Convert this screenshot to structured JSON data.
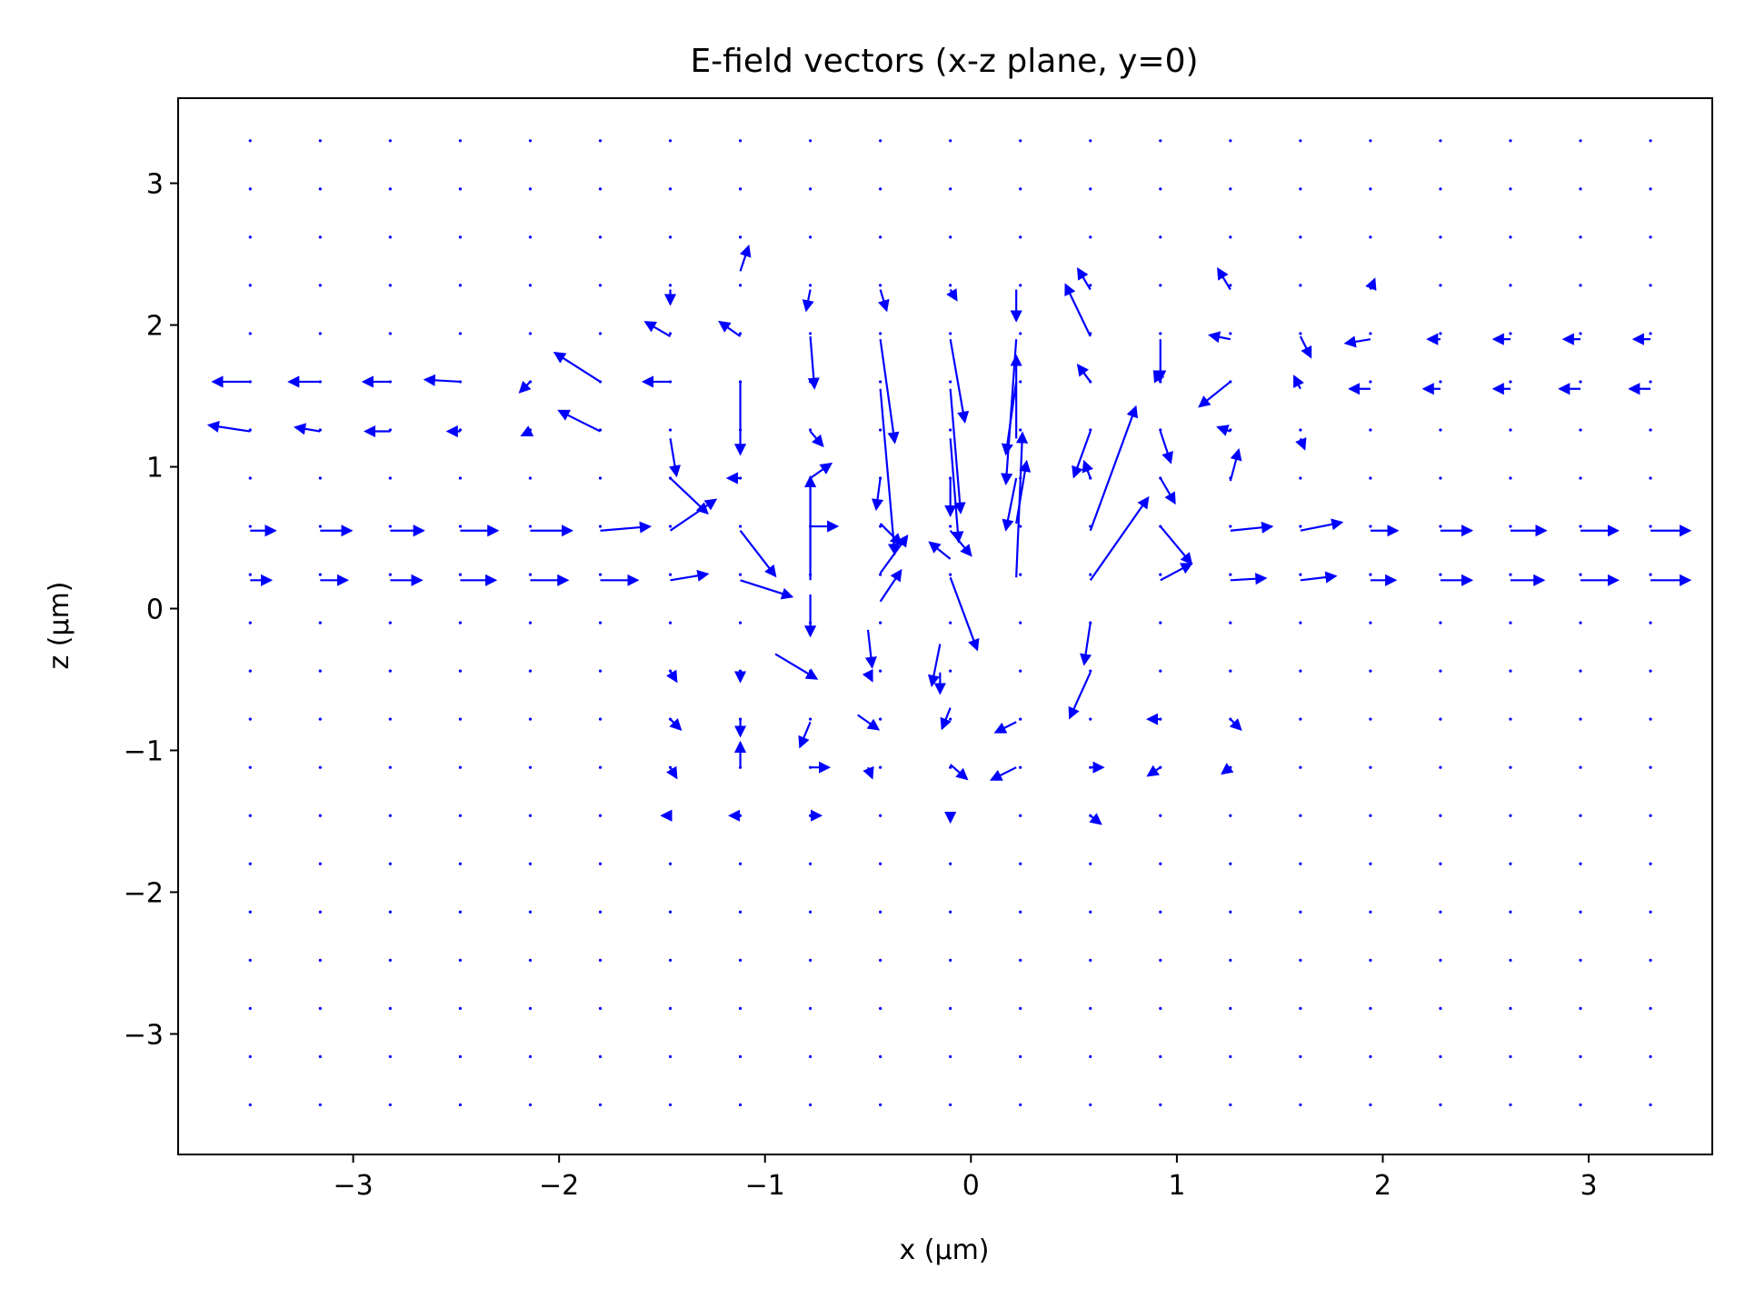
{
  "chart_data": {
    "type": "quiver",
    "title": "E-field vectors (x-z plane, y=0)",
    "xlabel": "x (µm)",
    "ylabel": "z (µm)",
    "xlim": [
      -3.85,
      3.6
    ],
    "ylim": [
      -3.85,
      3.6
    ],
    "xticks": [
      -3,
      -2,
      -1,
      0,
      1,
      2,
      3
    ],
    "yticks": [
      -3,
      -2,
      -1,
      0,
      1,
      2,
      3
    ],
    "xtick_labels": [
      "−3",
      "−2",
      "−1",
      "0",
      "1",
      "2",
      "3"
    ],
    "ytick_labels": [
      "−3",
      "−2",
      "−1",
      "0",
      "1",
      "2",
      "3"
    ],
    "grid": false,
    "legend": "none",
    "color": "#0000ff",
    "grid_x": [
      -3.5,
      -3.16,
      -2.82,
      -2.48,
      -2.14,
      -1.8,
      -1.46,
      -1.12,
      -0.78,
      -0.44,
      -0.1,
      0.24,
      0.58,
      0.92,
      1.26,
      1.6,
      1.94,
      2.28,
      2.62,
      2.96,
      3.3
    ],
    "grid_z": [
      -3.5,
      -3.16,
      -2.82,
      -2.48,
      -2.14,
      -1.8,
      -1.46,
      -1.12,
      -0.78,
      -0.44,
      -0.1,
      0.24,
      0.58,
      0.92,
      1.26,
      1.6,
      1.94,
      2.28,
      2.62,
      2.96,
      3.3
    ],
    "vectors": [
      {
        "x": -3.5,
        "z": 1.6,
        "u": -0.18,
        "v": 0.0
      },
      {
        "x": -3.16,
        "z": 1.6,
        "u": -0.15,
        "v": 0.0
      },
      {
        "x": -2.82,
        "z": 1.6,
        "u": -0.13,
        "v": 0.0
      },
      {
        "x": -2.48,
        "z": 1.6,
        "u": -0.17,
        "v": 0.01
      },
      {
        "x": -2.14,
        "z": 1.6,
        "u": -0.05,
        "v": -0.05
      },
      {
        "x": -1.8,
        "z": 1.6,
        "u": -0.22,
        "v": 0.14
      },
      {
        "x": -1.46,
        "z": 1.6,
        "u": -0.13,
        "v": 0.0
      },
      {
        "x": -3.5,
        "z": 1.25,
        "u": -0.2,
        "v": 0.03
      },
      {
        "x": -3.16,
        "z": 1.25,
        "u": -0.12,
        "v": 0.02
      },
      {
        "x": -2.82,
        "z": 1.25,
        "u": -0.12,
        "v": 0.0
      },
      {
        "x": -2.48,
        "z": 1.25,
        "u": -0.06,
        "v": 0.0
      },
      {
        "x": -2.14,
        "z": 1.25,
        "u": -0.04,
        "v": -0.02
      },
      {
        "x": -1.8,
        "z": 1.25,
        "u": -0.2,
        "v": 0.1
      },
      {
        "x": -3.5,
        "z": 0.55,
        "u": 0.12,
        "v": 0.0
      },
      {
        "x": -3.16,
        "z": 0.55,
        "u": 0.15,
        "v": 0.0
      },
      {
        "x": -2.82,
        "z": 0.55,
        "u": 0.16,
        "v": 0.0
      },
      {
        "x": -2.48,
        "z": 0.55,
        "u": 0.18,
        "v": 0.0
      },
      {
        "x": -2.14,
        "z": 0.55,
        "u": 0.2,
        "v": 0.0
      },
      {
        "x": -1.8,
        "z": 0.55,
        "u": 0.24,
        "v": 0.02
      },
      {
        "x": -1.46,
        "z": 0.55,
        "u": 0.22,
        "v": 0.15
      },
      {
        "x": -3.5,
        "z": 0.2,
        "u": 0.1,
        "v": 0.0
      },
      {
        "x": -3.16,
        "z": 0.2,
        "u": 0.13,
        "v": 0.0
      },
      {
        "x": -2.82,
        "z": 0.2,
        "u": 0.15,
        "v": 0.0
      },
      {
        "x": -2.48,
        "z": 0.2,
        "u": 0.17,
        "v": 0.0
      },
      {
        "x": -2.14,
        "z": 0.2,
        "u": 0.18,
        "v": 0.0
      },
      {
        "x": -1.8,
        "z": 0.2,
        "u": 0.18,
        "v": 0.0
      },
      {
        "x": -1.46,
        "z": 0.2,
        "u": 0.18,
        "v": 0.03
      },
      {
        "x": -1.46,
        "z": 0.92,
        "u": 0.18,
        "v": -0.17
      },
      {
        "x": -1.46,
        "z": 1.2,
        "u": 0.03,
        "v": -0.18
      },
      {
        "x": -1.46,
        "z": 1.92,
        "u": -0.12,
        "v": 0.07
      },
      {
        "x": -1.46,
        "z": 2.25,
        "u": 0.0,
        "v": -0.07
      },
      {
        "x": -1.12,
        "z": 2.38,
        "u": 0.04,
        "v": 0.12
      },
      {
        "x": -1.12,
        "z": 1.92,
        "u": -0.1,
        "v": 0.07
      },
      {
        "x": -1.12,
        "z": 1.6,
        "u": 0.0,
        "v": -0.35
      },
      {
        "x": -1.12,
        "z": 0.92,
        "u": -0.06,
        "v": 0.0
      },
      {
        "x": -1.12,
        "z": 0.55,
        "u": 0.17,
        "v": -0.22
      },
      {
        "x": -1.12,
        "z": 0.2,
        "u": 0.25,
        "v": -0.08
      },
      {
        "x": -0.78,
        "z": 2.25,
        "u": -0.02,
        "v": -0.1
      },
      {
        "x": -0.78,
        "z": 1.92,
        "u": 0.02,
        "v": -0.25
      },
      {
        "x": -0.78,
        "z": 1.25,
        "u": 0.06,
        "v": -0.07
      },
      {
        "x": -0.78,
        "z": 0.92,
        "u": 0.1,
        "v": 0.07
      },
      {
        "x": -0.78,
        "z": 0.2,
        "u": 0.0,
        "v": 0.5
      },
      {
        "x": -0.78,
        "z": 0.58,
        "u": 0.13,
        "v": 0.0
      },
      {
        "x": -0.78,
        "z": 0.1,
        "u": 0.0,
        "v": -0.2
      },
      {
        "x": -0.44,
        "z": 2.25,
        "u": 0.03,
        "v": -0.1
      },
      {
        "x": -0.44,
        "z": 1.9,
        "u": 0.07,
        "v": -0.5
      },
      {
        "x": -0.44,
        "z": 1.55,
        "u": 0.07,
        "v": -0.8
      },
      {
        "x": -0.44,
        "z": 0.92,
        "u": -0.02,
        "v": -0.15
      },
      {
        "x": -0.44,
        "z": 0.6,
        "u": 0.1,
        "v": -0.1
      },
      {
        "x": -0.44,
        "z": 0.25,
        "u": 0.13,
        "v": 0.18
      },
      {
        "x": -0.1,
        "z": 2.25,
        "u": 0.03,
        "v": -0.05
      },
      {
        "x": -0.1,
        "z": 1.9,
        "u": 0.07,
        "v": -0.4
      },
      {
        "x": -0.1,
        "z": 1.55,
        "u": 0.05,
        "v": -0.6
      },
      {
        "x": -0.1,
        "z": 1.2,
        "u": 0.04,
        "v": -0.5
      },
      {
        "x": -0.1,
        "z": 0.92,
        "u": 0.0,
        "v": -0.18
      },
      {
        "x": -0.1,
        "z": 0.55,
        "u": 0.1,
        "v": -0.12
      },
      {
        "x": -0.1,
        "z": 0.22,
        "u": 0.13,
        "v": -0.35
      },
      {
        "x": 0.22,
        "z": 2.25,
        "u": 0.0,
        "v": -0.15
      },
      {
        "x": 0.22,
        "z": 1.9,
        "u": -0.05,
        "v": -0.7
      },
      {
        "x": 0.22,
        "z": 1.6,
        "u": -0.05,
        "v": -0.35
      },
      {
        "x": 0.22,
        "z": 1.2,
        "u": 0.0,
        "v": 0.4
      },
      {
        "x": 0.22,
        "z": 0.92,
        "u": -0.05,
        "v": -0.25
      },
      {
        "x": 0.22,
        "z": 0.6,
        "u": 0.05,
        "v": 0.3
      },
      {
        "x": 0.22,
        "z": 0.22,
        "u": 0.03,
        "v": 0.7
      },
      {
        "x": 0.58,
        "z": 2.25,
        "u": -0.06,
        "v": 0.1
      },
      {
        "x": 0.58,
        "z": 1.92,
        "u": -0.12,
        "v": 0.25
      },
      {
        "x": 0.58,
        "z": 1.6,
        "u": -0.06,
        "v": 0.08
      },
      {
        "x": 0.58,
        "z": 1.25,
        "u": -0.08,
        "v": -0.22
      },
      {
        "x": 0.58,
        "z": 0.92,
        "u": -0.03,
        "v": 0.08
      },
      {
        "x": 0.58,
        "z": 0.55,
        "u": 0.22,
        "v": 0.6
      },
      {
        "x": 0.58,
        "z": 0.2,
        "u": 0.28,
        "v": 0.4
      },
      {
        "x": 0.92,
        "z": 1.9,
        "u": 0.0,
        "v": -0.2
      },
      {
        "x": 0.92,
        "z": 1.6,
        "u": -0.03,
        "v": 0.05
      },
      {
        "x": 0.92,
        "z": 1.25,
        "u": 0.05,
        "v": -0.15
      },
      {
        "x": 0.92,
        "z": 0.92,
        "u": 0.07,
        "v": -0.12
      },
      {
        "x": 0.92,
        "z": 0.58,
        "u": 0.15,
        "v": -0.18
      },
      {
        "x": 0.92,
        "z": 0.2,
        "u": 0.15,
        "v": 0.08
      },
      {
        "x": 1.26,
        "z": 2.25,
        "u": -0.06,
        "v": 0.1
      },
      {
        "x": 1.26,
        "z": 1.9,
        "u": -0.1,
        "v": 0.02
      },
      {
        "x": 1.26,
        "z": 1.6,
        "u": -0.15,
        "v": -0.12
      },
      {
        "x": 1.26,
        "z": 1.25,
        "u": -0.06,
        "v": 0.02
      },
      {
        "x": 1.26,
        "z": 0.9,
        "u": 0.04,
        "v": 0.15
      },
      {
        "x": 1.26,
        "z": 0.55,
        "u": 0.2,
        "v": 0.02
      },
      {
        "x": 1.26,
        "z": 0.2,
        "u": 0.17,
        "v": 0.01
      },
      {
        "x": 1.6,
        "z": 1.92,
        "u": 0.05,
        "v": -0.1
      },
      {
        "x": 1.6,
        "z": 1.55,
        "u": -0.03,
        "v": 0.06
      },
      {
        "x": 1.6,
        "z": 1.2,
        "u": 0.02,
        "v": -0.05
      },
      {
        "x": 1.6,
        "z": 0.55,
        "u": 0.2,
        "v": 0.04
      },
      {
        "x": 1.6,
        "z": 0.2,
        "u": 0.17,
        "v": 0.02
      },
      {
        "x": 1.94,
        "z": 2.25,
        "u": 0.02,
        "v": 0.05
      },
      {
        "x": 1.94,
        "z": 1.9,
        "u": -0.12,
        "v": -0.02
      },
      {
        "x": 1.94,
        "z": 1.55,
        "u": -0.1,
        "v": 0.0
      },
      {
        "x": 1.94,
        "z": 0.55,
        "u": 0.13,
        "v": 0.0
      },
      {
        "x": 1.94,
        "z": 0.2,
        "u": 0.12,
        "v": 0.0
      },
      {
        "x": 2.28,
        "z": 1.9,
        "u": -0.06,
        "v": 0.0
      },
      {
        "x": 2.28,
        "z": 1.55,
        "u": -0.08,
        "v": 0.0
      },
      {
        "x": 2.28,
        "z": 0.55,
        "u": 0.15,
        "v": 0.0
      },
      {
        "x": 2.28,
        "z": 0.2,
        "u": 0.15,
        "v": 0.0
      },
      {
        "x": 2.62,
        "z": 1.9,
        "u": -0.08,
        "v": 0.0
      },
      {
        "x": 2.62,
        "z": 1.55,
        "u": -0.08,
        "v": 0.0
      },
      {
        "x": 2.62,
        "z": 0.55,
        "u": 0.17,
        "v": 0.0
      },
      {
        "x": 2.62,
        "z": 0.2,
        "u": 0.16,
        "v": 0.0
      },
      {
        "x": 2.96,
        "z": 1.9,
        "u": -0.08,
        "v": 0.0
      },
      {
        "x": 2.96,
        "z": 1.55,
        "u": -0.1,
        "v": 0.0
      },
      {
        "x": 2.96,
        "z": 0.55,
        "u": 0.18,
        "v": 0.0
      },
      {
        "x": 2.96,
        "z": 0.2,
        "u": 0.18,
        "v": 0.0
      },
      {
        "x": 3.3,
        "z": 1.9,
        "u": -0.08,
        "v": 0.0
      },
      {
        "x": 3.3,
        "z": 1.55,
        "u": -0.1,
        "v": 0.0
      },
      {
        "x": 3.3,
        "z": 0.55,
        "u": 0.19,
        "v": 0.0
      },
      {
        "x": 3.3,
        "z": 0.2,
        "u": 0.19,
        "v": 0.0
      },
      {
        "x": -1.46,
        "z": -0.44,
        "u": 0.03,
        "v": -0.05
      },
      {
        "x": -1.46,
        "z": -0.78,
        "u": 0.05,
        "v": -0.05
      },
      {
        "x": -1.46,
        "z": -1.12,
        "u": 0.03,
        "v": -0.05
      },
      {
        "x": -1.46,
        "z": -1.46,
        "u": -0.04,
        "v": 0.0
      },
      {
        "x": -1.12,
        "z": -0.44,
        "u": 0.0,
        "v": -0.05
      },
      {
        "x": -1.12,
        "z": -0.78,
        "u": 0.0,
        "v": -0.08
      },
      {
        "x": -1.12,
        "z": -1.12,
        "u": 0.0,
        "v": 0.12
      },
      {
        "x": -1.12,
        "z": -1.46,
        "u": -0.05,
        "v": 0.0
      },
      {
        "x": -0.95,
        "z": -0.32,
        "u": 0.2,
        "v": -0.12
      },
      {
        "x": -0.78,
        "z": -0.8,
        "u": -0.05,
        "v": -0.12
      },
      {
        "x": -0.78,
        "z": -1.12,
        "u": 0.09,
        "v": 0.0
      },
      {
        "x": -0.78,
        "z": -1.46,
        "u": 0.05,
        "v": 0.0
      },
      {
        "x": -0.5,
        "z": -0.15,
        "u": 0.02,
        "v": -0.18
      },
      {
        "x": -0.5,
        "z": -0.45,
        "u": 0.02,
        "v": -0.04
      },
      {
        "x": -0.55,
        "z": -0.75,
        "u": 0.1,
        "v": -0.07
      },
      {
        "x": -0.5,
        "z": -1.12,
        "u": 0.02,
        "v": -0.05
      },
      {
        "x": -0.15,
        "z": -0.25,
        "u": -0.04,
        "v": -0.2
      },
      {
        "x": -0.15,
        "z": -0.45,
        "u": 0.0,
        "v": -0.1
      },
      {
        "x": -0.1,
        "z": -0.7,
        "u": -0.04,
        "v": -0.1
      },
      {
        "x": -0.1,
        "z": -1.1,
        "u": 0.08,
        "v": -0.07
      },
      {
        "x": -0.1,
        "z": -1.46,
        "u": 0.0,
        "v": -0.03
      },
      {
        "x": 0.22,
        "z": -0.8,
        "u": -0.1,
        "v": -0.05
      },
      {
        "x": 0.22,
        "z": -1.12,
        "u": -0.12,
        "v": -0.06
      },
      {
        "x": 0.58,
        "z": -0.45,
        "u": -0.1,
        "v": -0.22
      },
      {
        "x": 0.58,
        "z": -0.1,
        "u": -0.03,
        "v": -0.2
      },
      {
        "x": 0.58,
        "z": -1.12,
        "u": 0.06,
        "v": 0.0
      },
      {
        "x": 0.58,
        "z": -1.46,
        "u": 0.05,
        "v": -0.04
      },
      {
        "x": 0.92,
        "z": -0.78,
        "u": -0.06,
        "v": 0.0
      },
      {
        "x": 0.92,
        "z": -1.12,
        "u": -0.06,
        "v": -0.04
      },
      {
        "x": 1.26,
        "z": -0.78,
        "u": 0.05,
        "v": -0.05
      },
      {
        "x": 1.26,
        "z": -1.12,
        "u": -0.04,
        "v": -0.03
      },
      {
        "x": -0.44,
        "z": 0.05,
        "u": 0.1,
        "v": 0.15
      },
      {
        "x": -0.1,
        "z": 0.35,
        "u": -0.1,
        "v": 0.08
      },
      {
        "x": 0.58,
        "z": 0.55,
        "u": 0.0,
        "v": 0.0
      }
    ]
  }
}
